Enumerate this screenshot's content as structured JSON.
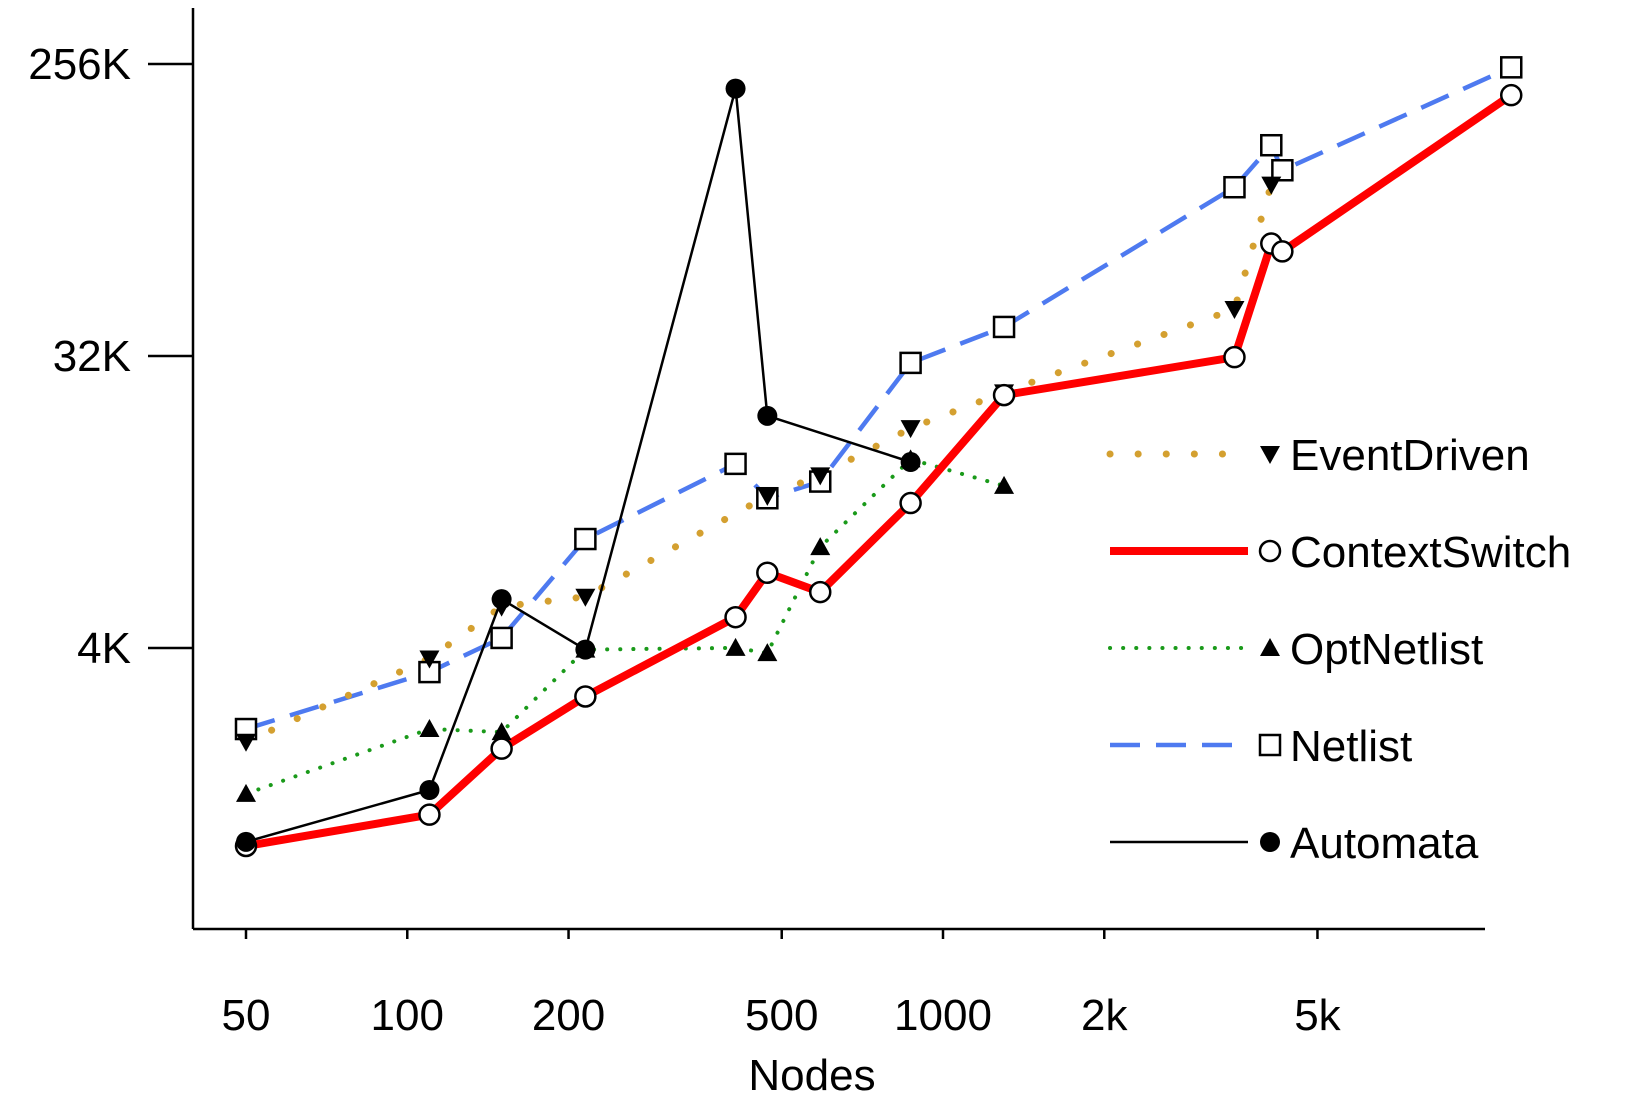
{
  "chart_data": {
    "type": "line",
    "xlabel": "Nodes",
    "ylabel": "",
    "xscale": "log",
    "yscale": "log",
    "xlim": [
      45,
      13000
    ],
    "ylim": [
      600,
      500000
    ],
    "x_ticks": [
      {
        "value": 50,
        "label": "50"
      },
      {
        "value": 100,
        "label": "100"
      },
      {
        "value": 200,
        "label": "200"
      },
      {
        "value": 500,
        "label": "500"
      },
      {
        "value": 1000,
        "label": "1000"
      },
      {
        "value": 2000,
        "label": "2k"
      },
      {
        "value": 5000,
        "label": "5k"
      }
    ],
    "y_ticks": [
      {
        "value": 4096,
        "label": "4K"
      },
      {
        "value": 32768,
        "label": "32K"
      },
      {
        "value": 262144,
        "label": "256K"
      }
    ],
    "legend_position": "right",
    "series": [
      {
        "name": "EventDriven",
        "color": "#d4a030",
        "line": "dotted",
        "marker": "triangle-down",
        "points": [
          [
            50,
            2100
          ],
          [
            110,
            3800
          ],
          [
            150,
            5500
          ],
          [
            215,
            5900
          ],
          [
            470,
            12100
          ],
          [
            590,
            14000
          ],
          [
            870,
            19600
          ],
          [
            1300,
            25300
          ],
          [
            3500,
            45800
          ],
          [
            4100,
            111000
          ]
        ]
      },
      {
        "name": "ContextSwitch",
        "color": "#ff0000",
        "line": "solid-thick",
        "marker": "circle-open",
        "points": [
          [
            50,
            1000
          ],
          [
            110,
            1250
          ],
          [
            150,
            2000
          ],
          [
            215,
            2900
          ],
          [
            410,
            5100
          ],
          [
            470,
            7000
          ],
          [
            590,
            6100
          ],
          [
            870,
            11500
          ],
          [
            1300,
            24800
          ],
          [
            3500,
            32500
          ],
          [
            4100,
            73000
          ],
          [
            4300,
            69000
          ],
          [
            11500,
            210000
          ]
        ]
      },
      {
        "name": "OptNetlist",
        "color": "#1a9a1a",
        "line": "dotted",
        "marker": "triangle-up",
        "points": [
          [
            50,
            1450
          ],
          [
            110,
            2300
          ],
          [
            150,
            2250
          ],
          [
            215,
            4050
          ],
          [
            410,
            4100
          ],
          [
            470,
            3950
          ],
          [
            590,
            8400
          ],
          [
            870,
            15700
          ],
          [
            1300,
            13000
          ]
        ]
      },
      {
        "name": "Netlist",
        "color": "#4e7af0",
        "line": "dashed",
        "marker": "square-open",
        "points": [
          [
            50,
            2300
          ],
          [
            110,
            3450
          ],
          [
            150,
            4400
          ],
          [
            215,
            8900
          ],
          [
            410,
            15200
          ],
          [
            470,
            11900
          ],
          [
            590,
            13400
          ],
          [
            870,
            31200
          ],
          [
            1300,
            40300
          ],
          [
            3500,
            109000
          ],
          [
            4100,
            147000
          ],
          [
            4300,
            123000
          ],
          [
            11500,
            256000
          ]
        ]
      },
      {
        "name": "Automata",
        "color": "#000000",
        "line": "solid-thin",
        "marker": "circle-filled",
        "points": [
          [
            50,
            1030
          ],
          [
            110,
            1490
          ],
          [
            150,
            5800
          ],
          [
            215,
            4050
          ],
          [
            410,
            220000
          ],
          [
            470,
            21400
          ],
          [
            870,
            15400
          ]
        ]
      }
    ]
  }
}
